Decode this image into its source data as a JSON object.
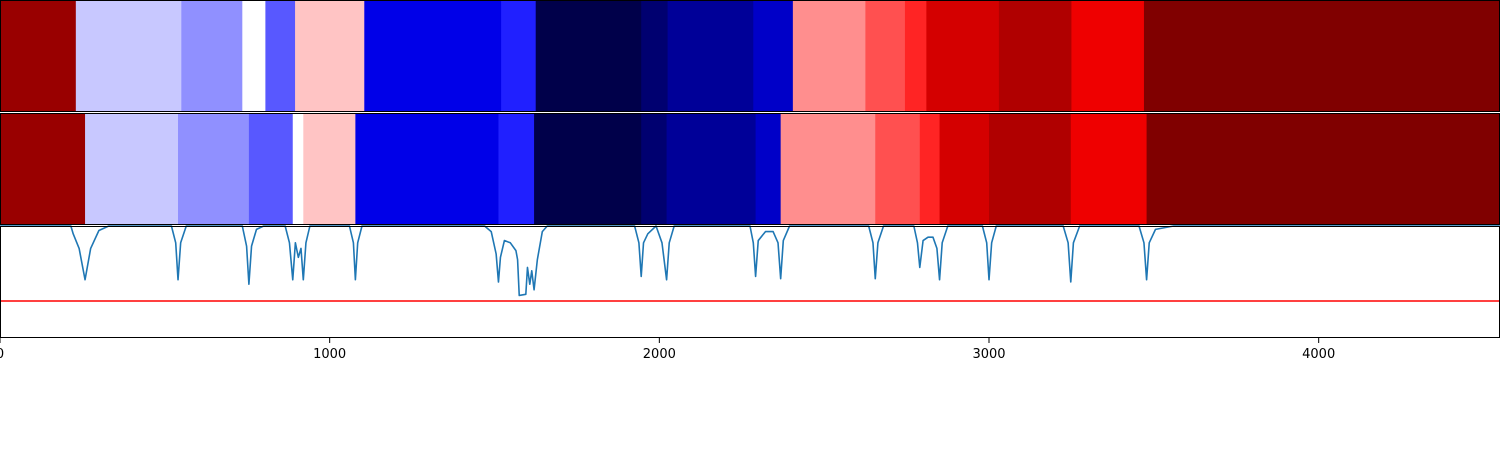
{
  "chart_data": {
    "type": "heatmap",
    "title": "",
    "xlabel": "",
    "ylabel": "",
    "xlim": [
      0,
      4550
    ],
    "x_ticks": [
      {
        "value": 0,
        "label": "0"
      },
      {
        "value": 1000,
        "label": "1000"
      },
      {
        "value": 2000,
        "label": "2000"
      },
      {
        "value": 3000,
        "label": "3000"
      },
      {
        "value": 4000,
        "label": "4000"
      }
    ],
    "grid": false,
    "legend": "none",
    "rows": [
      {
        "segments": [
          {
            "start": 0,
            "end": 230,
            "color": "#990000"
          },
          {
            "start": 230,
            "end": 550,
            "color": "#c8c8ff"
          },
          {
            "start": 550,
            "end": 735,
            "color": "#9090ff"
          },
          {
            "start": 735,
            "end": 805,
            "color": "#ffffff"
          },
          {
            "start": 805,
            "end": 895,
            "color": "#5858ff"
          },
          {
            "start": 895,
            "end": 1105,
            "color": "#ffc4c4"
          },
          {
            "start": 1105,
            "end": 1520,
            "color": "#0000e8"
          },
          {
            "start": 1520,
            "end": 1625,
            "color": "#2020ff"
          },
          {
            "start": 1625,
            "end": 1945,
            "color": "#00004a"
          },
          {
            "start": 1945,
            "end": 2025,
            "color": "#000070"
          },
          {
            "start": 2025,
            "end": 2285,
            "color": "#000098"
          },
          {
            "start": 2285,
            "end": 2405,
            "color": "#0000c8"
          },
          {
            "start": 2405,
            "end": 2625,
            "color": "#ff8e8e"
          },
          {
            "start": 2625,
            "end": 2745,
            "color": "#ff5050"
          },
          {
            "start": 2745,
            "end": 2810,
            "color": "#ff2424"
          },
          {
            "start": 2810,
            "end": 3030,
            "color": "#d40000"
          },
          {
            "start": 3030,
            "end": 3250,
            "color": "#b00000"
          },
          {
            "start": 3250,
            "end": 3470,
            "color": "#ef0000"
          },
          {
            "start": 3470,
            "end": 4550,
            "color": "#800000"
          }
        ]
      },
      {
        "segments": [
          {
            "start": 0,
            "end": 258,
            "color": "#990000"
          },
          {
            "start": 258,
            "end": 540,
            "color": "#c8c8ff"
          },
          {
            "start": 540,
            "end": 755,
            "color": "#9090ff"
          },
          {
            "start": 755,
            "end": 888,
            "color": "#5858ff"
          },
          {
            "start": 888,
            "end": 920,
            "color": "#ffffff"
          },
          {
            "start": 920,
            "end": 1078,
            "color": "#ffc4c4"
          },
          {
            "start": 1078,
            "end": 1512,
            "color": "#0000e8"
          },
          {
            "start": 1512,
            "end": 1620,
            "color": "#2020ff"
          },
          {
            "start": 1620,
            "end": 1945,
            "color": "#00004a"
          },
          {
            "start": 1945,
            "end": 2022,
            "color": "#000070"
          },
          {
            "start": 2022,
            "end": 2292,
            "color": "#000098"
          },
          {
            "start": 2292,
            "end": 2368,
            "color": "#0000c8"
          },
          {
            "start": 2368,
            "end": 2655,
            "color": "#ff8e8e"
          },
          {
            "start": 2655,
            "end": 2790,
            "color": "#ff5050"
          },
          {
            "start": 2790,
            "end": 2850,
            "color": "#ff2424"
          },
          {
            "start": 2850,
            "end": 3000,
            "color": "#d40000"
          },
          {
            "start": 3000,
            "end": 3248,
            "color": "#b00000"
          },
          {
            "start": 3248,
            "end": 3478,
            "color": "#ef0000"
          },
          {
            "start": 3478,
            "end": 4550,
            "color": "#800000"
          }
        ]
      }
    ],
    "signal": {
      "color": "#1f77b4",
      "ylim": [
        0,
        1
      ],
      "baseline": 1.0,
      "points": [
        [
          0,
          1.0
        ],
        [
          215,
          1.0
        ],
        [
          222,
          0.93
        ],
        [
          240,
          0.8
        ],
        [
          258,
          0.52
        ],
        [
          275,
          0.8
        ],
        [
          300,
          0.96
        ],
        [
          330,
          1.0
        ],
        [
          520,
          1.0
        ],
        [
          533,
          0.85
        ],
        [
          540,
          0.52
        ],
        [
          548,
          0.85
        ],
        [
          565,
          1.0
        ],
        [
          735,
          1.0
        ],
        [
          748,
          0.82
        ],
        [
          755,
          0.48
        ],
        [
          763,
          0.82
        ],
        [
          778,
          0.97
        ],
        [
          800,
          1.0
        ],
        [
          865,
          1.0
        ],
        [
          878,
          0.85
        ],
        [
          888,
          0.52
        ],
        [
          896,
          0.85
        ],
        [
          905,
          0.72
        ],
        [
          913,
          0.8
        ],
        [
          920,
          0.52
        ],
        [
          928,
          0.85
        ],
        [
          940,
          1.0
        ],
        [
          1060,
          1.0
        ],
        [
          1072,
          0.85
        ],
        [
          1078,
          0.52
        ],
        [
          1085,
          0.85
        ],
        [
          1098,
          1.0
        ],
        [
          1470,
          1.0
        ],
        [
          1490,
          0.95
        ],
        [
          1505,
          0.75
        ],
        [
          1512,
          0.5
        ],
        [
          1518,
          0.72
        ],
        [
          1530,
          0.87
        ],
        [
          1548,
          0.85
        ],
        [
          1565,
          0.78
        ],
        [
          1570,
          0.7
        ],
        [
          1575,
          0.38
        ],
        [
          1595,
          0.39
        ],
        [
          1600,
          0.63
        ],
        [
          1607,
          0.48
        ],
        [
          1613,
          0.6
        ],
        [
          1620,
          0.43
        ],
        [
          1630,
          0.7
        ],
        [
          1645,
          0.95
        ],
        [
          1660,
          1.0
        ],
        [
          1925,
          1.0
        ],
        [
          1938,
          0.85
        ],
        [
          1945,
          0.55
        ],
        [
          1952,
          0.85
        ],
        [
          1965,
          0.93
        ],
        [
          1990,
          1.0
        ],
        [
          2008,
          0.85
        ],
        [
          2022,
          0.52
        ],
        [
          2030,
          0.85
        ],
        [
          2045,
          1.0
        ],
        [
          2275,
          1.0
        ],
        [
          2285,
          0.85
        ],
        [
          2292,
          0.55
        ],
        [
          2300,
          0.87
        ],
        [
          2322,
          0.95
        ],
        [
          2345,
          0.95
        ],
        [
          2360,
          0.85
        ],
        [
          2368,
          0.53
        ],
        [
          2376,
          0.87
        ],
        [
          2395,
          1.0
        ],
        [
          2635,
          1.0
        ],
        [
          2648,
          0.85
        ],
        [
          2655,
          0.53
        ],
        [
          2663,
          0.85
        ],
        [
          2680,
          1.0
        ],
        [
          2772,
          1.0
        ],
        [
          2783,
          0.85
        ],
        [
          2790,
          0.63
        ],
        [
          2800,
          0.87
        ],
        [
          2815,
          0.9
        ],
        [
          2830,
          0.9
        ],
        [
          2842,
          0.8
        ],
        [
          2850,
          0.52
        ],
        [
          2858,
          0.85
        ],
        [
          2875,
          1.0
        ],
        [
          2980,
          1.0
        ],
        [
          2993,
          0.85
        ],
        [
          3000,
          0.52
        ],
        [
          3008,
          0.85
        ],
        [
          3022,
          1.0
        ],
        [
          3225,
          1.0
        ],
        [
          3240,
          0.85
        ],
        [
          3248,
          0.5
        ],
        [
          3256,
          0.85
        ],
        [
          3275,
          1.0
        ],
        [
          3455,
          1.0
        ],
        [
          3470,
          0.85
        ],
        [
          3478,
          0.52
        ],
        [
          3486,
          0.85
        ],
        [
          3505,
          0.97
        ],
        [
          3560,
          1.0
        ],
        [
          4550,
          1.0
        ]
      ]
    },
    "threshold": {
      "value": 0.33,
      "color": "#ff0000"
    }
  }
}
